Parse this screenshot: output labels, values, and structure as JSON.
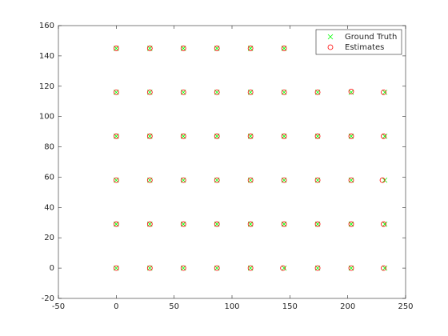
{
  "chart_data": {
    "type": "scatter",
    "xlim": [
      -50,
      250
    ],
    "xticks": [
      -50,
      0,
      50,
      100,
      150,
      200,
      250
    ],
    "ylim": [
      -20,
      160
    ],
    "yticks": [
      -20,
      0,
      20,
      40,
      60,
      80,
      100,
      120,
      140,
      160
    ],
    "legend": "northeast",
    "series": [
      {
        "name": "Ground Truth",
        "color": "#00ff00",
        "marker": "x",
        "x": [
          0,
          29,
          58,
          87,
          116,
          145,
          174,
          203,
          232,
          0,
          29,
          58,
          87,
          116,
          145,
          174,
          203,
          232,
          0,
          29,
          58,
          87,
          116,
          145,
          174,
          203,
          232,
          0,
          29,
          58,
          87,
          116,
          145,
          174,
          203,
          232,
          0,
          29,
          58,
          87,
          116,
          145,
          174,
          203,
          232,
          0,
          29,
          58,
          87,
          116,
          145
        ],
        "y": [
          0,
          0,
          0,
          0,
          0,
          0,
          0,
          0,
          0,
          29,
          29,
          29,
          29,
          29,
          29,
          29,
          29,
          29,
          58,
          58,
          58,
          58,
          58,
          58,
          58,
          58,
          58,
          87,
          87,
          87,
          87,
          87,
          87,
          87,
          87,
          87,
          116,
          116,
          116,
          116,
          116,
          116,
          116,
          116,
          116,
          145,
          145,
          145,
          145,
          145,
          145
        ]
      },
      {
        "name": "Estimates",
        "color": "#ff0000",
        "marker": "o",
        "x": [
          0,
          29,
          58,
          87,
          116,
          144,
          174,
          203,
          231,
          0,
          29,
          58,
          87,
          116,
          145,
          174,
          203,
          231,
          0,
          29,
          58,
          87,
          116,
          145,
          174,
          203,
          230,
          0,
          29,
          58,
          87,
          116,
          145,
          174,
          203,
          231,
          0,
          29,
          58,
          87,
          116,
          145,
          174,
          203,
          231,
          0,
          29,
          58,
          87,
          116,
          145
        ],
        "y": [
          0,
          0,
          0,
          0,
          0,
          0,
          0,
          0,
          0,
          29,
          29,
          29,
          29,
          29,
          29,
          29,
          29,
          29,
          58,
          58,
          58,
          58,
          58,
          58,
          58,
          58,
          58,
          87,
          87,
          87,
          87,
          87,
          87,
          87,
          87,
          87,
          116,
          116,
          116,
          116,
          116,
          116,
          116,
          116.5,
          116,
          145,
          145,
          145,
          145,
          145,
          145
        ]
      }
    ]
  }
}
